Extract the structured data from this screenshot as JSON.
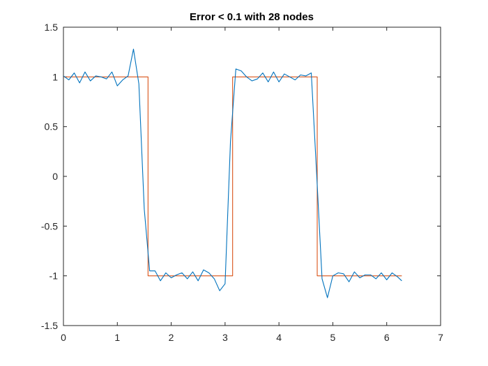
{
  "chart_data": {
    "type": "line",
    "title": "Error < 0.1 with 28 nodes",
    "xlabel": "",
    "ylabel": "",
    "xlim": [
      0,
      7
    ],
    "ylim": [
      -1.5,
      1.5
    ],
    "xticks": [
      0,
      1,
      2,
      3,
      4,
      5,
      6,
      7
    ],
    "yticks": [
      -1.5,
      -1,
      -0.5,
      0,
      0.5,
      1,
      1.5
    ],
    "xtick_labels": [
      "0",
      "1",
      "2",
      "3",
      "4",
      "5",
      "6",
      "7"
    ],
    "ytick_labels": [
      "-1.5",
      "-1",
      "-0.5",
      "0",
      "0.5",
      "1",
      "1.5"
    ],
    "grid": false,
    "legend": "none",
    "series": [
      {
        "color": "#0072BD",
        "x": [
          0.0,
          0.1,
          0.2,
          0.3,
          0.4,
          0.5,
          0.6,
          0.7,
          0.8,
          0.9,
          1.0,
          1.1,
          1.2,
          1.3,
          1.4,
          1.5,
          1.6,
          1.7,
          1.8,
          1.9,
          2.0,
          2.1,
          2.2,
          2.3,
          2.4,
          2.5,
          2.6,
          2.7,
          2.8,
          2.9,
          3.0,
          3.1,
          3.2,
          3.3,
          3.4,
          3.5,
          3.6,
          3.7,
          3.8,
          3.9,
          4.0,
          4.1,
          4.2,
          4.3,
          4.4,
          4.5,
          4.6,
          4.7,
          4.8,
          4.9,
          5.0,
          5.1,
          5.2,
          5.3,
          5.4,
          5.5,
          5.6,
          5.7,
          5.8,
          5.9,
          6.0,
          6.1,
          6.2,
          6.28
        ],
        "y": [
          1.01,
          0.97,
          1.04,
          0.94,
          1.05,
          0.96,
          1.01,
          1.0,
          0.98,
          1.05,
          0.91,
          0.97,
          1.01,
          1.28,
          0.93,
          -0.33,
          -0.95,
          -0.95,
          -1.05,
          -0.97,
          -1.02,
          -0.99,
          -0.97,
          -1.03,
          -0.96,
          -1.05,
          -0.94,
          -0.97,
          -1.03,
          -1.15,
          -1.08,
          0.35,
          1.08,
          1.06,
          1.0,
          0.96,
          0.98,
          1.04,
          0.95,
          1.05,
          0.95,
          1.03,
          1.0,
          0.97,
          1.02,
          1.01,
          1.04,
          0.02,
          -1.03,
          -1.22,
          -1.0,
          -0.97,
          -0.98,
          -1.06,
          -0.96,
          -1.02,
          -0.99,
          -0.99,
          -1.03,
          -0.97,
          -1.04,
          -0.97,
          -1.01,
          -1.05
        ]
      },
      {
        "color": "#D95319",
        "x": [
          0.0,
          1.57,
          1.57,
          3.14,
          3.14,
          4.71,
          4.71,
          6.28
        ],
        "y": [
          1,
          1,
          -1,
          -1,
          1,
          1,
          -1,
          -1
        ]
      }
    ]
  }
}
